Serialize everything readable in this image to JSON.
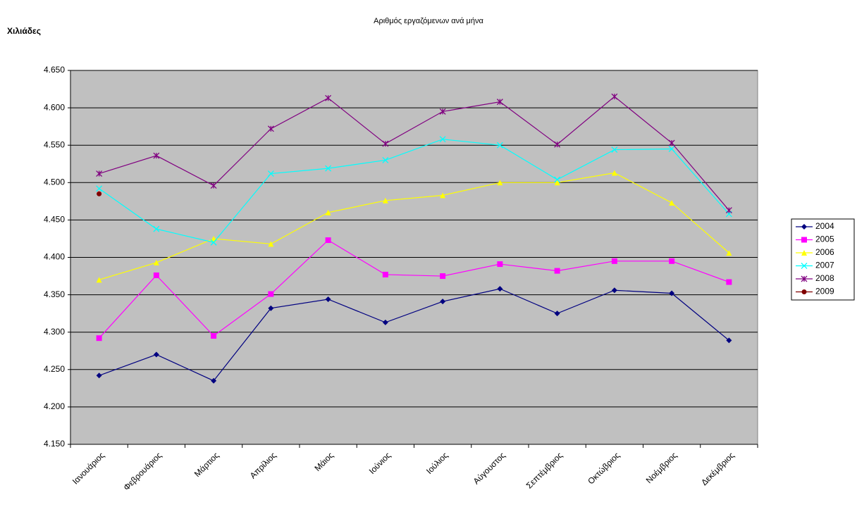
{
  "chart_data": {
    "type": "line",
    "title": "Αριθμός εργαζόμενων ανά μήνα",
    "y_label": "Χιλιάδες",
    "categories": [
      "Ιανουάριος",
      "Φεβρουάριος",
      "Μάρτιος",
      "Απρίλιος",
      "Μάιος",
      "Ιούνιος",
      "Ιούλιος",
      "Αύγουστος",
      "Σεπτέμβριος",
      "Οκτώβριος",
      "Νοέμβριος",
      "Δεκέμβριος"
    ],
    "series": [
      {
        "name": "2004",
        "color": "#000080",
        "marker": "diamond",
        "values": [
          4242,
          4270,
          4235,
          4332,
          4344,
          4313,
          4341,
          4358,
          4325,
          4356,
          4352,
          4289
        ]
      },
      {
        "name": "2005",
        "color": "#ff00ff",
        "marker": "square",
        "values": [
          4292,
          4376,
          4295,
          4351,
          4423,
          4377,
          4375,
          4391,
          4382,
          4395,
          4395,
          4367
        ]
      },
      {
        "name": "2006",
        "color": "#ffff00",
        "marker": "triangle",
        "values": [
          4370,
          4393,
          4425,
          4418,
          4460,
          4476,
          4483,
          4500,
          4500,
          4513,
          4473,
          4406
        ]
      },
      {
        "name": "2007",
        "color": "#00ffff",
        "marker": "x",
        "values": [
          4492,
          4438,
          4420,
          4512,
          4519,
          4530,
          4558,
          4550,
          4504,
          4544,
          4545,
          4458
        ]
      },
      {
        "name": "2008",
        "color": "#800080",
        "marker": "star",
        "values": [
          4512,
          4536,
          4496,
          4572,
          4613,
          4552,
          4595,
          4608,
          4551,
          4615,
          4553,
          4463
        ]
      },
      {
        "name": "2009",
        "color": "#800000",
        "marker": "circle",
        "values": [
          4485,
          null,
          null,
          null,
          null,
          null,
          null,
          null,
          null,
          null,
          null,
          null
        ]
      }
    ],
    "ylim": [
      4150,
      4650
    ],
    "yticks": [
      {
        "value": 4150,
        "label": "4.150"
      },
      {
        "value": 4200,
        "label": "4.200"
      },
      {
        "value": 4250,
        "label": "4.250"
      },
      {
        "value": 4300,
        "label": "4.300"
      },
      {
        "value": 4350,
        "label": "4.350"
      },
      {
        "value": 4400,
        "label": "4.400"
      },
      {
        "value": 4450,
        "label": "4.450"
      },
      {
        "value": 4500,
        "label": "4.500"
      },
      {
        "value": 4550,
        "label": "4.550"
      },
      {
        "value": 4600,
        "label": "4.600"
      },
      {
        "value": 4650,
        "label": "4.650"
      }
    ],
    "grid": true,
    "legend": "right"
  }
}
